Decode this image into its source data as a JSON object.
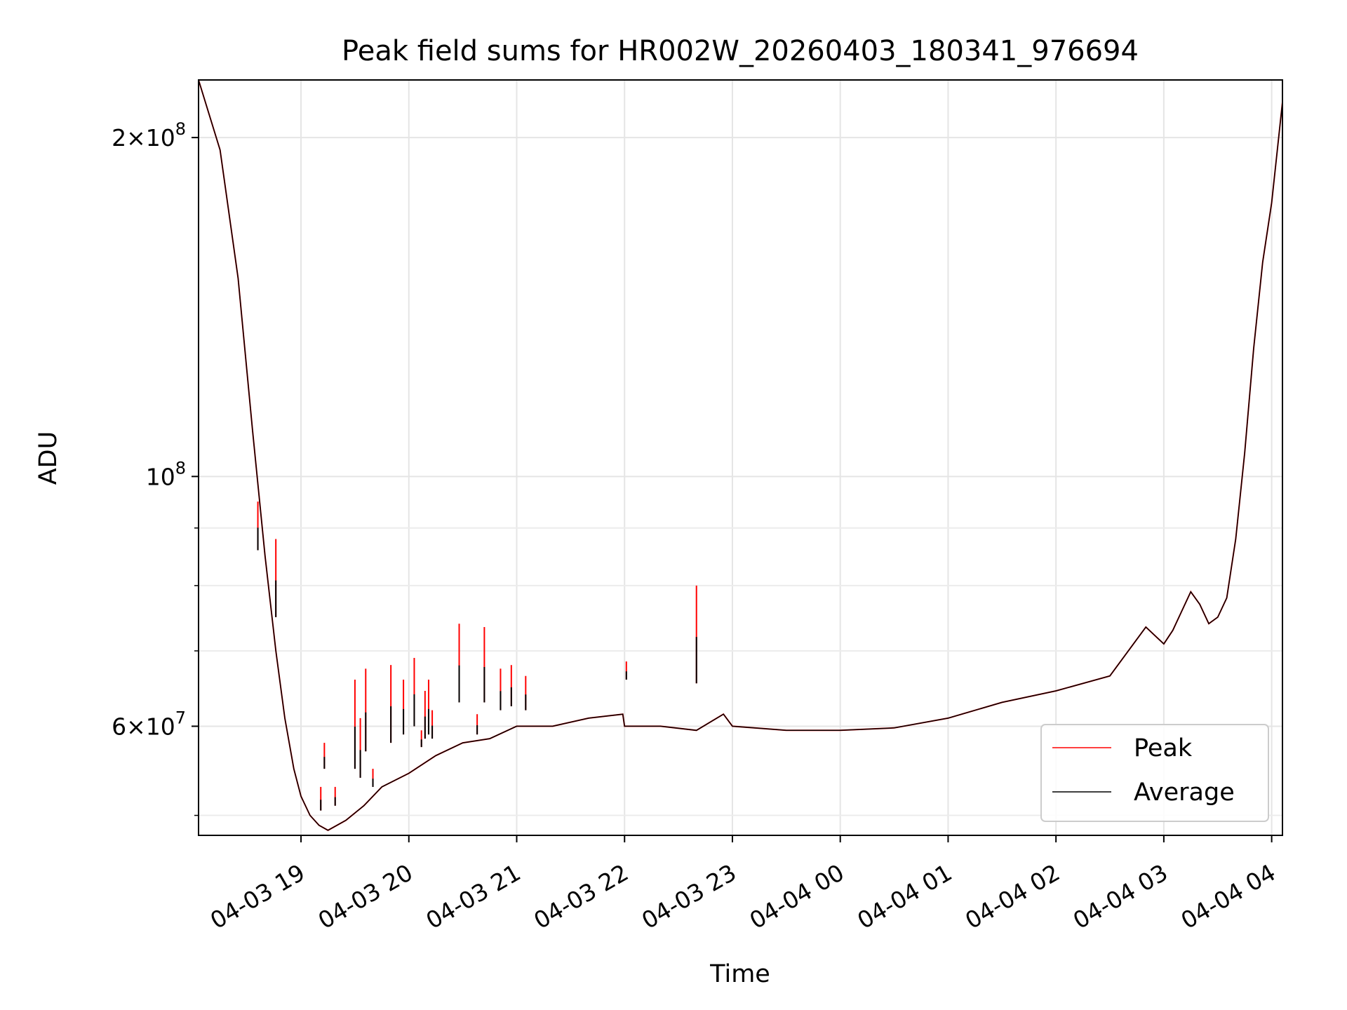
{
  "chart_data": {
    "type": "line",
    "title": "Peak field sums for HR002W_20260403_180341_976694",
    "xlabel": "Time",
    "ylabel": "ADU",
    "y_scale": "log",
    "xlim": [
      "04-03 18:03",
      "04-04 04:06"
    ],
    "ylim": [
      48000000,
      225000000
    ],
    "grid": true,
    "legend_position": "lower-right",
    "x_ticks": [
      "04-03 19",
      "04-03 20",
      "04-03 21",
      "04-03 22",
      "04-03 23",
      "04-04 00",
      "04-04 01",
      "04-04 02",
      "04-04 03",
      "04-04 04"
    ],
    "y_tick_labels": [
      {
        "value": 200000000,
        "mantissa": "2",
        "exponent": "8"
      },
      {
        "value": 100000000,
        "mantissa": "",
        "exponent": "8"
      },
      {
        "value": 60000000,
        "mantissa": "6",
        "exponent": "7"
      }
    ],
    "y_minor_ticks": [
      50000000,
      70000000,
      80000000,
      90000000
    ],
    "colors": {
      "peak": "#ff0000",
      "average": "#000000"
    },
    "series": [
      {
        "name": "Peak",
        "x": [
          "04-03 18:03",
          "04-03 18:15",
          "04-03 18:25",
          "04-03 18:33",
          "04-03 18:40",
          "04-03 18:46",
          "04-03 18:51",
          "04-03 18:56",
          "04-03 19:00",
          "04-03 19:05",
          "04-03 19:10",
          "04-03 19:15",
          "04-03 19:25",
          "04-03 19:35",
          "04-03 19:45",
          "04-03 20:00",
          "04-03 20:15",
          "04-03 20:30",
          "04-03 20:45",
          "04-03 21:00",
          "04-03 21:20",
          "04-03 21:40",
          "04-03 21:59",
          "04-03 22:00",
          "04-03 22:20",
          "04-03 22:40",
          "04-03 22:55",
          "04-03 23:00",
          "04-03 23:30",
          "04-04 00:00",
          "04-04 00:30",
          "04-04 01:00",
          "04-04 01:30",
          "04-04 02:00",
          "04-04 02:30",
          "04-04 02:50",
          "04-04 03:00",
          "04-04 03:05",
          "04-04 03:15",
          "04-04 03:20",
          "04-04 03:25",
          "04-04 03:30",
          "04-04 03:35",
          "04-04 03:40",
          "04-04 03:45",
          "04-04 03:50",
          "04-04 03:55",
          "04-04 04:00",
          "04-04 04:06"
        ],
        "y": [
          225000000,
          195000000,
          150000000,
          110000000,
          85000000,
          70000000,
          61000000,
          55000000,
          52000000,
          50000000,
          49000000,
          48500000,
          49500000,
          51000000,
          53000000,
          54500000,
          56500000,
          58000000,
          58500000,
          60000000,
          60000000,
          61000000,
          61500000,
          60000000,
          60000000,
          59500000,
          61500000,
          60000000,
          59500000,
          59500000,
          59800000,
          61000000,
          63000000,
          64500000,
          66500000,
          73500000,
          71000000,
          73000000,
          79000000,
          77000000,
          74000000,
          75000000,
          78000000,
          88000000,
          105000000,
          130000000,
          155000000,
          175000000,
          215000000
        ]
      },
      {
        "name": "Average",
        "x": [
          "04-03 18:03",
          "04-03 18:15",
          "04-03 18:25",
          "04-03 18:33",
          "04-03 18:40",
          "04-03 18:46",
          "04-03 18:51",
          "04-03 18:56",
          "04-03 19:00",
          "04-03 19:05",
          "04-03 19:10",
          "04-03 19:15",
          "04-03 19:25",
          "04-03 19:35",
          "04-03 19:45",
          "04-03 20:00",
          "04-03 20:15",
          "04-03 20:30",
          "04-03 20:45",
          "04-03 21:00",
          "04-03 21:20",
          "04-03 21:40",
          "04-03 21:59",
          "04-03 22:00",
          "04-03 22:20",
          "04-03 22:40",
          "04-03 22:55",
          "04-03 23:00",
          "04-03 23:30",
          "04-04 00:00",
          "04-04 00:30",
          "04-04 01:00",
          "04-04 01:30",
          "04-04 02:00",
          "04-04 02:30",
          "04-04 02:50",
          "04-04 03:00",
          "04-04 03:05",
          "04-04 03:15",
          "04-04 03:20",
          "04-04 03:25",
          "04-04 03:30",
          "04-04 03:35",
          "04-04 03:40",
          "04-04 03:45",
          "04-04 03:50",
          "04-04 03:55",
          "04-04 04:00",
          "04-04 04:06"
        ],
        "y": [
          225000000,
          195000000,
          150000000,
          110000000,
          85000000,
          70000000,
          61000000,
          55000000,
          52000000,
          50000000,
          49000000,
          48500000,
          49500000,
          51000000,
          53000000,
          54500000,
          56500000,
          58000000,
          58500000,
          60000000,
          60000000,
          61000000,
          61500000,
          60000000,
          60000000,
          59500000,
          61500000,
          60000000,
          59500000,
          59500000,
          59800000,
          61000000,
          63000000,
          64500000,
          66500000,
          73500000,
          71000000,
          73000000,
          79000000,
          77000000,
          74000000,
          75000000,
          78000000,
          88000000,
          105000000,
          130000000,
          155000000,
          175000000,
          215000000
        ]
      }
    ],
    "peak_spikes": [
      {
        "x": "04-03 18:36",
        "peak": 95000000,
        "avg": 86000000
      },
      {
        "x": "04-03 18:46",
        "peak": 88000000,
        "avg": 75000000
      },
      {
        "x": "04-03 19:11",
        "peak": 53000000,
        "avg": 50500000
      },
      {
        "x": "04-03 19:13",
        "peak": 58000000,
        "avg": 55000000
      },
      {
        "x": "04-03 19:19",
        "peak": 53000000,
        "avg": 51000000
      },
      {
        "x": "04-03 19:30",
        "peak": 66000000,
        "avg": 55000000
      },
      {
        "x": "04-03 19:33",
        "peak": 61000000,
        "avg": 54000000
      },
      {
        "x": "04-03 19:36",
        "peak": 67500000,
        "avg": 57000000
      },
      {
        "x": "04-03 19:40",
        "peak": 55000000,
        "avg": 53000000
      },
      {
        "x": "04-03 19:50",
        "peak": 68000000,
        "avg": 58000000
      },
      {
        "x": "04-03 19:57",
        "peak": 66000000,
        "avg": 59000000
      },
      {
        "x": "04-03 20:03",
        "peak": 69000000,
        "avg": 60000000
      },
      {
        "x": "04-03 20:07",
        "peak": 59500000,
        "avg": 57500000
      },
      {
        "x": "04-03 20:09",
        "peak": 64500000,
        "avg": 58500000
      },
      {
        "x": "04-03 20:11",
        "peak": 66000000,
        "avg": 59000000
      },
      {
        "x": "04-03 20:13",
        "peak": 62000000,
        "avg": 58500000
      },
      {
        "x": "04-03 20:28",
        "peak": 74000000,
        "avg": 63000000
      },
      {
        "x": "04-03 20:38",
        "peak": 61500000,
        "avg": 59000000
      },
      {
        "x": "04-03 20:42",
        "peak": 73500000,
        "avg": 63000000
      },
      {
        "x": "04-03 20:51",
        "peak": 67500000,
        "avg": 62000000
      },
      {
        "x": "04-03 20:57",
        "peak": 68000000,
        "avg": 62500000
      },
      {
        "x": "04-03 21:05",
        "peak": 66500000,
        "avg": 62000000
      },
      {
        "x": "04-03 22:01",
        "peak": 68500000,
        "avg": 66000000
      },
      {
        "x": "04-03 22:40",
        "peak": 80000000,
        "avg": 65500000
      }
    ]
  }
}
